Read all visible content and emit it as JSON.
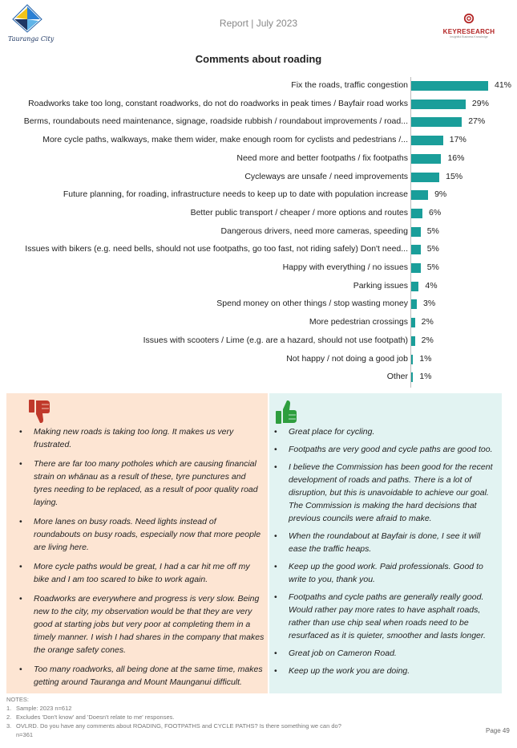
{
  "header": {
    "report_title": "Report | July 2023",
    "left_logo_text": "Tauranga City",
    "right_logo_name": "KEYRESEARCH",
    "right_logo_tagline": "Insightful Business Knowledge",
    "left_logo_icon": "tauranga-city-logo",
    "right_logo_icon": "keyresearch-logo"
  },
  "page_title": "Comments about roading",
  "chart_data": {
    "type": "bar",
    "orientation": "horizontal",
    "bar_color": "#1a9e9a",
    "categories": [
      "Fix the roads, traffic congestion",
      "Roadworks take too long, constant roadworks, do not do roadworks in peak times / Bayfair road works",
      "Berms, roundabouts need maintenance, signage, roadside rubbish / roundabout improvements / road...",
      "More cycle paths, walkways, make them wider, make enough room for cyclists and pedestrians /...",
      "Need more and better footpaths / fix footpaths",
      "Cycleways are unsafe / need improvements",
      "Future planning, for roading, infrastructure needs to keep up to date with population increase",
      "Better public transport / cheaper / more options and routes",
      "Dangerous drivers, need more cameras, speeding",
      "Issues with bikers (e.g. need bells, should not use footpaths, go too fast, not riding safely) Don't need...",
      "Happy with everything / no issues",
      "Parking issues",
      "Spend money on other things / stop wasting money",
      "More pedestrian crossings",
      "Issues with scooters / Lime (e.g. are a hazard, should not use footpath)",
      "Not happy / not doing a good job",
      "Other"
    ],
    "values": [
      41,
      29,
      27,
      17,
      16,
      15,
      9,
      6,
      5,
      5,
      5,
      4,
      3,
      2,
      2,
      1,
      1
    ],
    "value_labels": [
      "41%",
      "29%",
      "27%",
      "17%",
      "16%",
      "15%",
      "9%",
      "6%",
      "5%",
      "5%",
      "5%",
      "4%",
      "3%",
      "2%",
      "2%",
      "1%",
      "1%"
    ],
    "xlim": [
      0,
      45
    ]
  },
  "negative_panel": {
    "icon": "thumbs-down-icon",
    "color": "#c0392b",
    "comments": [
      "Making new roads is taking too long. It makes us very frustrated.",
      "There are far too many potholes which are causing financial strain on whānau as a result of these, tyre punctures and tyres needing to be replaced, as a result of poor quality road laying.",
      "More lanes on busy roads. Need lights instead of roundabouts on busy roads, especially now that more people are living here.",
      "More cycle paths would be great, I had a car hit me off my bike and I am too scared to bike to work again.",
      "Roadworks are everywhere and progress is very slow. Being new to the city, my observation would be that they are very good at starting jobs but very poor at completing them in a timely manner. I wish I had shares in the company that makes the orange safety cones.",
      "Too many roadworks, all being done at the same time, makes getting around Tauranga and Mount Maunganui difficult."
    ]
  },
  "positive_panel": {
    "icon": "thumbs-up-icon",
    "color": "#2e9e3e",
    "comments": [
      "Great place for cycling.",
      "Footpaths are very good and cycle paths are good too.",
      "I believe the Commission has been good for the recent development of roads and paths. There is a lot of disruption, but this is unavoidable to achieve our goal. The Commission is making the hard decisions that previous councils were afraid to make.",
      "When the roundabout at Bayfair is done, I see it will ease the traffic heaps.",
      "Keep up the good work. Paid professionals. Good to write to you, thank you.",
      "Footpaths and cycle paths are generally really good. Would rather pay more rates to have asphalt roads, rather than use chip seal when roads need to be resurfaced as it is quieter, smoother and lasts longer.",
      "Great job on Cameron Road.",
      "Keep up the work you are doing."
    ]
  },
  "notes": {
    "heading": "NOTES:",
    "items": [
      "Sample: 2023 n=612",
      "Excludes 'Don't know' and 'Doesn't relate to me' responses.",
      "OVLRD. Do you have any comments about ROADING, FOOTPATHS and CYCLE PATHS? Is there something we can do? n=361"
    ]
  },
  "page_number": "Page 49"
}
